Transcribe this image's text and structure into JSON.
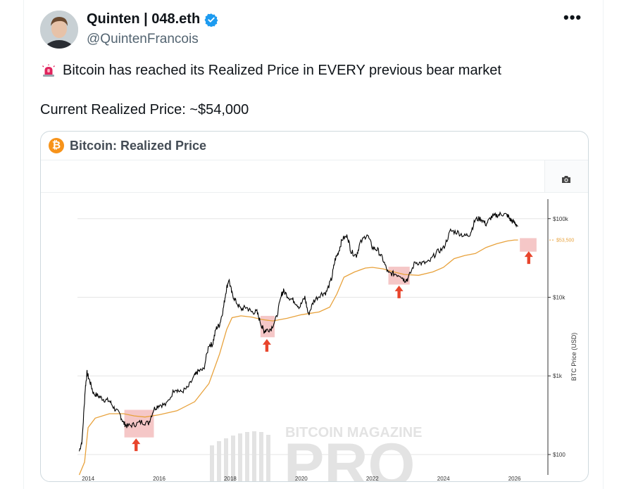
{
  "tweet": {
    "display_name": "Quinten | 048.eth",
    "handle": "@QuintenFrancois",
    "text_line1": "Bitcoin has reached its Realized Price in EVERY previous bear market",
    "text_line2": "Current Realized Price: ~$54,000",
    "siren_icon": "police-siren-emoji",
    "verified_color": "#1d9bf0",
    "more_label": "•••"
  },
  "card": {
    "title": "Bitcoin: Realized Price",
    "logo_glyph": "₿",
    "watermark_small": "BITCOIN MAGAZINE",
    "watermark_big": "PRO"
  },
  "chart_data": {
    "type": "line",
    "ylabel": "BTC Price (USD)",
    "y_scale": "log",
    "ylim": [
      55,
      170000
    ],
    "xlim": [
      2013.7,
      2026.9
    ],
    "x_ticks": [
      "2014",
      "2016",
      "2018",
      "2020",
      "2022",
      "2024",
      "2026"
    ],
    "y_ticks": [
      {
        "value": 100,
        "label": "$100"
      },
      {
        "value": 1000,
        "label": "$1k"
      },
      {
        "value": 10000,
        "label": "$10k"
      },
      {
        "value": 100000,
        "label": "$100k"
      }
    ],
    "current_label": "$53,500",
    "current_value": 53500,
    "colors": {
      "price": "#000000",
      "realized": "#e8a23c",
      "highlight": "#f3b9b9",
      "arrow": "#e8452c"
    },
    "series": [
      {
        "role": "price",
        "x": [
          2013.75,
          2013.83,
          2013.92,
          2013.97,
          2014.05,
          2014.15,
          2014.3,
          2014.45,
          2014.6,
          2014.75,
          2014.9,
          2015.0,
          2015.1,
          2015.3,
          2015.5,
          2015.7,
          2015.85,
          2016.0,
          2016.2,
          2016.45,
          2016.6,
          2016.8,
          2017.0,
          2017.1,
          2017.25,
          2017.4,
          2017.5,
          2017.6,
          2017.7,
          2017.8,
          2017.88,
          2017.96,
          2018.05,
          2018.15,
          2018.3,
          2018.45,
          2018.6,
          2018.75,
          2018.87,
          2018.95,
          2019.0,
          2019.15,
          2019.3,
          2019.45,
          2019.5,
          2019.65,
          2019.8,
          2019.95,
          2020.1,
          2020.2,
          2020.35,
          2020.55,
          2020.7,
          2020.85,
          2020.95,
          2021.05,
          2021.15,
          2021.3,
          2021.4,
          2021.55,
          2021.65,
          2021.85,
          2022.0,
          2022.15,
          2022.3,
          2022.45,
          2022.6,
          2022.8,
          2022.9,
          2023.0,
          2023.2,
          2023.4,
          2023.6,
          2023.8,
          2024.0,
          2024.2,
          2024.4,
          2024.6,
          2024.75,
          2024.9,
          2025.05,
          2025.2,
          2025.35,
          2025.5,
          2025.65,
          2025.8,
          2025.9,
          2026.0,
          2026.1
        ],
        "values": [
          110,
          150,
          700,
          1100,
          850,
          600,
          550,
          500,
          480,
          380,
          320,
          250,
          230,
          240,
          260,
          250,
          380,
          430,
          430,
          700,
          620,
          700,
          1000,
          1150,
          1200,
          2500,
          2500,
          4000,
          4500,
          7000,
          12000,
          17000,
          11000,
          9000,
          7000,
          7500,
          6500,
          6500,
          4500,
          3700,
          3800,
          4000,
          5500,
          11000,
          12000,
          10000,
          9000,
          7500,
          10000,
          6000,
          9000,
          11000,
          11500,
          17000,
          30000,
          38000,
          55000,
          60000,
          38000,
          34000,
          48000,
          64000,
          43000,
          40000,
          30000,
          20000,
          20000,
          19000,
          16500,
          17000,
          28000,
          27000,
          28000,
          37000,
          42000,
          70000,
          67000,
          60000,
          64000,
          98000,
          100000,
          85000,
          105000,
          110000,
          115000,
          110000,
          95000,
          89000,
          80000
        ]
      },
      {
        "role": "realized",
        "x": [
          2013.75,
          2013.9,
          2014.0,
          2014.2,
          2014.6,
          2015.0,
          2015.3,
          2015.6,
          2016.0,
          2016.5,
          2017.0,
          2017.4,
          2017.7,
          2017.9,
          2018.05,
          2018.3,
          2018.6,
          2018.9,
          2019.2,
          2019.6,
          2020.0,
          2020.5,
          2020.8,
          2021.0,
          2021.2,
          2021.5,
          2021.8,
          2022.0,
          2022.3,
          2022.6,
          2022.9,
          2023.3,
          2023.7,
          2024.0,
          2024.3,
          2024.6,
          2024.9,
          2025.2,
          2025.5,
          2025.8,
          2026.0,
          2026.1
        ],
        "values": [
          55,
          80,
          220,
          290,
          330,
          330,
          310,
          300,
          320,
          360,
          470,
          800,
          1900,
          3900,
          5500,
          5800,
          5600,
          5200,
          5000,
          5400,
          6000,
          6500,
          7500,
          11000,
          18000,
          21000,
          23500,
          24000,
          23000,
          21000,
          19500,
          19000,
          21000,
          24000,
          31000,
          34000,
          36000,
          43000,
          48000,
          52000,
          53500,
          53500
        ]
      }
    ],
    "highlight_boxes": [
      {
        "x0": 2015.02,
        "x1": 2015.85,
        "y0": 165,
        "y1": 370
      },
      {
        "x0": 2018.85,
        "x1": 2019.25,
        "y0": 3100,
        "y1": 5800
      },
      {
        "x0": 2022.45,
        "x1": 2023.05,
        "y0": 14500,
        "y1": 24500
      },
      {
        "x0": 2026.15,
        "x1": 2026.62,
        "y0": 38000,
        "y1": 56500
      }
    ],
    "arrows": [
      {
        "x": 2015.35,
        "y": 125
      },
      {
        "x": 2019.03,
        "y": 2300
      },
      {
        "x": 2022.75,
        "y": 11000
      },
      {
        "x": 2026.4,
        "y": 30000
      }
    ]
  }
}
